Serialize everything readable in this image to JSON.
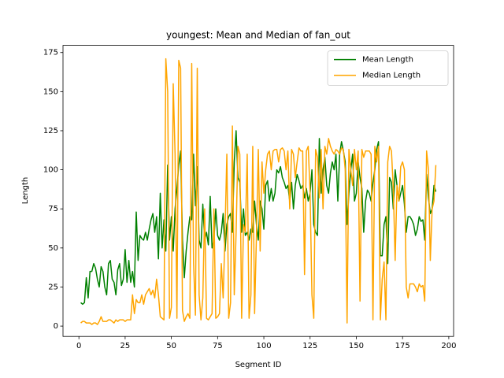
{
  "chart_data": {
    "type": "line",
    "title": "youngest: Mean and Median of fan_out",
    "xlabel": "Segment ID",
    "ylabel": "Length",
    "x": [
      1,
      2,
      3,
      4,
      5,
      6,
      7,
      8,
      9,
      10,
      11,
      12,
      13,
      14,
      15,
      16,
      17,
      18,
      19,
      20,
      21,
      22,
      23,
      24,
      25,
      26,
      27,
      28,
      29,
      30,
      31,
      32,
      33,
      34,
      35,
      36,
      37,
      38,
      39,
      40,
      41,
      42,
      43,
      44,
      45,
      46,
      47,
      48,
      49,
      50,
      51,
      52,
      53,
      54,
      55,
      56,
      57,
      58,
      59,
      60,
      61,
      62,
      63,
      64,
      65,
      66,
      67,
      68,
      69,
      70,
      71,
      72,
      73,
      74,
      75,
      76,
      77,
      78,
      79,
      80,
      81,
      82,
      83,
      84,
      85,
      86,
      87,
      88,
      89,
      90,
      91,
      92,
      93,
      94,
      95,
      96,
      97,
      98,
      99,
      100,
      101,
      102,
      103,
      104,
      105,
      106,
      107,
      108,
      109,
      110,
      111,
      112,
      113,
      114,
      115,
      116,
      117,
      118,
      119,
      120,
      121,
      122,
      123,
      124,
      125,
      126,
      127,
      128,
      129,
      130,
      131,
      132,
      133,
      134,
      135,
      136,
      137,
      138,
      139,
      140,
      141,
      142,
      143,
      144,
      145,
      146,
      147,
      148,
      149,
      150,
      151,
      152,
      153,
      154,
      155,
      156,
      157,
      158,
      159,
      160,
      161,
      162,
      163,
      164,
      165,
      166,
      167,
      168,
      169,
      170,
      171,
      172,
      173,
      174,
      175,
      176,
      177,
      178,
      179,
      180,
      181,
      182,
      183,
      184,
      185,
      186,
      187,
      188,
      189,
      190,
      191,
      192,
      193
    ],
    "series": [
      {
        "name": "Mean Length",
        "color": "#008000",
        "values": [
          15,
          14,
          15,
          31,
          18,
          35,
          35,
          40,
          37,
          30,
          25,
          38,
          35,
          25,
          20,
          40,
          42,
          30,
          28,
          20,
          36,
          40,
          26,
          30,
          49,
          28,
          42,
          28,
          35,
          25,
          73,
          42,
          58,
          56,
          55,
          60,
          55,
          62,
          68,
          72,
          60,
          70,
          43,
          85,
          50,
          68,
          48,
          103,
          55,
          70,
          48,
          75,
          88,
          103,
          112,
          55,
          31,
          48,
          60,
          70,
          68,
          110,
          77,
          102,
          55,
          50,
          78,
          55,
          60,
          52,
          83,
          50,
          55,
          75,
          58,
          55,
          60,
          72,
          48,
          65,
          70,
          72,
          60,
          105,
          125,
          95,
          92,
          60,
          75,
          58,
          60,
          55,
          62,
          60,
          80,
          65,
          55,
          80,
          75,
          62,
          90,
          93,
          80,
          88,
          80,
          85,
          100,
          98,
          102,
          95,
          92,
          88,
          90,
          80,
          92,
          75,
          90,
          97,
          93,
          88,
          90,
          82,
          88,
          80,
          85,
          100,
          65,
          60,
          58,
          120,
          85,
          100,
          108,
          90,
          85,
          98,
          105,
          100,
          110,
          80,
          110,
          118,
          112,
          105,
          65,
          85,
          100,
          110,
          80,
          85,
          105,
          95,
          88,
          60,
          80,
          87,
          85,
          80,
          92,
          100,
          113,
          118,
          45,
          45,
          65,
          70,
          40,
          95,
          92,
          75,
          100,
          90,
          80,
          85,
          90,
          78,
          60,
          70,
          70,
          68,
          65,
          58,
          62,
          70,
          67,
          68,
          55,
          97,
          82,
          72,
          75,
          90,
          86
        ]
      },
      {
        "name": "Median Length",
        "color": "#ffa500",
        "values": [
          2,
          3,
          3,
          2,
          2,
          2,
          1,
          2,
          2,
          1,
          3,
          6,
          3,
          3,
          3,
          4,
          4,
          3,
          2,
          4,
          3,
          4,
          4,
          4,
          3,
          4,
          4,
          4,
          20,
          8,
          17,
          15,
          15,
          20,
          14,
          20,
          22,
          24,
          20,
          23,
          18,
          30,
          20,
          6,
          5,
          4,
          171,
          150,
          5,
          12,
          155,
          110,
          5,
          170,
          165,
          10,
          3,
          6,
          8,
          5,
          168,
          40,
          7,
          165,
          20,
          4,
          18,
          75,
          5,
          4,
          6,
          8,
          75,
          5,
          6,
          8,
          40,
          18,
          60,
          110,
          5,
          15,
          128,
          20,
          60,
          115,
          110,
          5,
          65,
          60,
          110,
          5,
          20,
          115,
          8,
          58,
          113,
          48,
          105,
          85,
          100,
          110,
          112,
          100,
          112,
          113,
          113,
          105,
          113,
          114,
          112,
          100,
          112,
          75,
          113,
          110,
          95,
          105,
          114,
          112,
          112,
          33,
          112,
          115,
          85,
          20,
          5,
          113,
          108,
          82,
          113,
          75,
          115,
          110,
          120,
          115,
          112,
          110,
          113,
          112,
          110,
          114,
          113,
          100,
          2,
          113,
          100,
          90,
          113,
          100,
          112,
          16,
          113,
          108,
          112,
          112,
          112,
          110,
          4,
          115,
          105,
          115,
          4,
          30,
          41,
          4,
          105,
          115,
          112,
          88,
          42,
          90,
          80,
          102,
          105,
          100,
          25,
          18,
          27,
          27,
          27,
          25,
          22,
          27,
          25,
          26,
          16,
          112,
          100,
          42,
          75,
          80,
          103
        ]
      }
    ],
    "xlim": [
      -8.6,
      202.6
    ],
    "ylim": [
      -6.6,
      179.6
    ],
    "xticks": [
      0,
      25,
      50,
      75,
      100,
      125,
      150,
      175,
      200
    ],
    "yticks": [
      0,
      25,
      50,
      75,
      100,
      125,
      150,
      175
    ],
    "legend": "upper right"
  }
}
